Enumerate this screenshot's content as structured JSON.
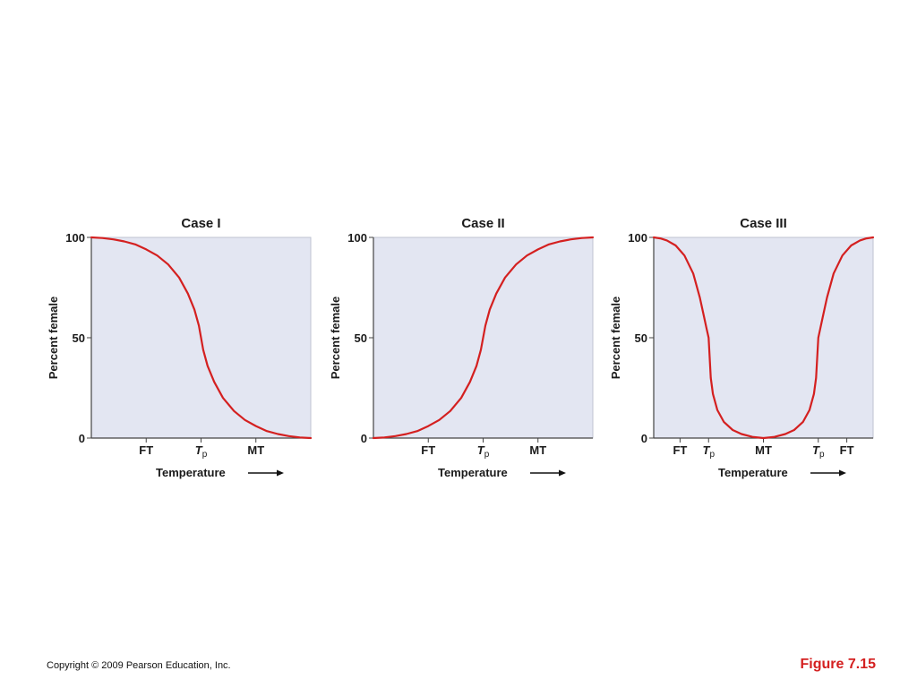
{
  "footer": {
    "copyright": "Copyright © 2009 Pearson Education, Inc.",
    "figure_label": "Figure 7.15"
  },
  "colors": {
    "curve": "#d42020",
    "panel_bg": "#e3e6f2",
    "axis": "#444444",
    "text": "#1a1a1a"
  },
  "chart_data": [
    {
      "type": "line",
      "title": "Case I",
      "ylabel": "Percent female",
      "xlabel": "Temperature",
      "ylim": [
        0,
        100
      ],
      "xlim": [
        0,
        1
      ],
      "yticks": [
        0,
        50,
        100
      ],
      "xticks": [
        {
          "x": 0.25,
          "main": "FT",
          "sub": ""
        },
        {
          "x": 0.5,
          "main": "T",
          "sub": "p"
        },
        {
          "x": 0.75,
          "main": "MT",
          "sub": ""
        }
      ],
      "grid": false,
      "series": [
        {
          "x": [
            0,
            0.05,
            0.1,
            0.15,
            0.2,
            0.25,
            0.3,
            0.35,
            0.4,
            0.44,
            0.47,
            0.49,
            0.5,
            0.51,
            0.53,
            0.56,
            0.6,
            0.65,
            0.7,
            0.75,
            0.8,
            0.85,
            0.9,
            0.95,
            1
          ],
          "y": [
            100,
            99.7,
            99,
            98,
            96.5,
            94,
            91,
            86.5,
            80,
            72,
            64,
            56,
            50,
            44,
            36,
            28,
            20,
            13.5,
            9,
            6,
            3.5,
            2,
            1,
            0.3,
            0
          ]
        }
      ]
    },
    {
      "type": "line",
      "title": "Case II",
      "ylabel": "Percent female",
      "xlabel": "Temperature",
      "ylim": [
        0,
        100
      ],
      "xlim": [
        0,
        1
      ],
      "yticks": [
        0,
        50,
        100
      ],
      "xticks": [
        {
          "x": 0.25,
          "main": "FT",
          "sub": ""
        },
        {
          "x": 0.5,
          "main": "T",
          "sub": "p"
        },
        {
          "x": 0.75,
          "main": "MT",
          "sub": ""
        }
      ],
      "grid": false,
      "series": [
        {
          "x": [
            0,
            0.05,
            0.1,
            0.15,
            0.2,
            0.25,
            0.3,
            0.35,
            0.4,
            0.44,
            0.47,
            0.49,
            0.5,
            0.51,
            0.53,
            0.56,
            0.6,
            0.65,
            0.7,
            0.75,
            0.8,
            0.85,
            0.9,
            0.95,
            1
          ],
          "y": [
            0,
            0.3,
            1,
            2,
            3.5,
            6,
            9,
            13.5,
            20,
            28,
            36,
            44,
            50,
            56,
            64,
            72,
            80,
            86.5,
            91,
            94,
            96.5,
            98,
            99,
            99.7,
            100
          ]
        }
      ]
    },
    {
      "type": "line",
      "title": "Case III",
      "ylabel": "Percent female",
      "xlabel": "Temperature",
      "ylim": [
        0,
        100
      ],
      "xlim": [
        0,
        1
      ],
      "yticks": [
        0,
        50,
        100
      ],
      "xticks": [
        {
          "x": 0.12,
          "main": "FT",
          "sub": ""
        },
        {
          "x": 0.25,
          "main": "T",
          "sub": "p"
        },
        {
          "x": 0.5,
          "main": "MT",
          "sub": ""
        },
        {
          "x": 0.75,
          "main": "T",
          "sub": "p"
        },
        {
          "x": 0.88,
          "main": "FT",
          "sub": ""
        }
      ],
      "grid": false,
      "series": [
        {
          "x": [
            0,
            0.03,
            0.06,
            0.1,
            0.14,
            0.18,
            0.21,
            0.23,
            0.24,
            0.25,
            0.26,
            0.27,
            0.29,
            0.32,
            0.36,
            0.4,
            0.45,
            0.5,
            0.55,
            0.6,
            0.64,
            0.68,
            0.71,
            0.73,
            0.74,
            0.75,
            0.76,
            0.77,
            0.79,
            0.82,
            0.86,
            0.9,
            0.94,
            0.97,
            1
          ],
          "y": [
            100,
            99.5,
            98.5,
            96,
            91,
            82,
            70,
            60,
            55,
            50,
            30,
            22,
            14,
            8,
            4,
            2,
            0.6,
            0,
            0.6,
            2,
            4,
            8,
            14,
            22,
            30,
            50,
            55,
            60,
            70,
            82,
            91,
            96,
            98.5,
            99.5,
            100
          ]
        }
      ]
    }
  ]
}
